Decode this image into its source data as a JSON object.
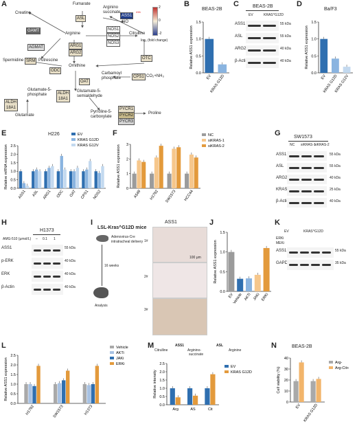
{
  "colors": {
    "ev_blue": "#2f6fb0",
    "kras_g12d": "#8ab4e0",
    "kras_g12v": "#c3d9ef",
    "nc_gray": "#9b9b9b",
    "si1": "#f6c78c",
    "si2": "#e39a3c",
    "vehicle": "#a9a9a9",
    "akti": "#a8c2e3",
    "jaki": "#2f6fb0",
    "erki": "#e39a3c",
    "arg_minus": "#a9a9a9",
    "arg_cit": "#f2b56b"
  },
  "panels": {
    "A": {
      "label": "A",
      "nodes": {
        "fumarate": "Fumarate",
        "argino": "Arginino",
        "succinate": "succinate",
        "creatine": "Creatine",
        "asl": "ASL",
        "ass1": "ASS1",
        "asterisks": "***",
        "gamt": "GAMT",
        "arginine": "Arginine",
        "nos1": "NOS1",
        "nos2": "NOS2",
        "nos3": "NOS3",
        "no": "NO",
        "citrulline": "Citrulline",
        "agmat": "AGMAT",
        "arg1": "ARG1",
        "arg2": "ARG2",
        "spermidine": "Spermidine",
        "srm": "SRM",
        "putrescine": "Putrescine",
        "odc": "ODC",
        "ornithine": "Ornithine",
        "otc": "OTC",
        "carbamoyl": "Carbamoyl",
        "phosphate": "phosphate",
        "cps1": "CPS1",
        "co2": "CO₂+NH₃",
        "oat": "OAT",
        "glutamate5p": "Glutamate-5-",
        "phosphate2": "phosphate",
        "aldh18a1": "ALDH",
        "aldh18a1b": "18A1",
        "glutamate5s": "Glutamate-5-",
        "semialdehyde": "semialdehyde",
        "glutamate": "Glutamate",
        "pyrroline": "Pyrroline-5-",
        "carboxylate": "carboxylate",
        "pycr1": "PYCR1",
        "pycr2": "PYCR2",
        "pycr3": "PYCR3",
        "proline": "Proline",
        "scale_top": "2",
        "scale_mid": "0",
        "scale_bot": "-2",
        "scale_title": "log₂ (fold change)"
      }
    },
    "B": {
      "label": "B",
      "title": "BEAS-2B",
      "ylabel": "Relative ASS1 expression",
      "categories": [
        "EV",
        "KRAS^G12D"
      ],
      "sig": "***"
    },
    "C": {
      "label": "C",
      "title": "BEAS-2B",
      "lanes": [
        "EV",
        "KRAS^G12D"
      ],
      "rows": [
        "ASS1",
        "ASL",
        "ARG2",
        "β-Actin"
      ],
      "kda": [
        "55 kDa",
        "55 kDa",
        "40 kDa",
        "40 kDa"
      ]
    },
    "D": {
      "label": "D",
      "title": "Ba/F3",
      "ylabel": "Relative ASS1 expression",
      "categories": [
        "EV",
        "KRAS^G12D",
        "KRAS^G12V"
      ],
      "sig1": "***",
      "sig2": "**"
    },
    "E": {
      "label": "E",
      "title": "H226",
      "ylabel": "Relative mRNA expression",
      "legend": [
        "EV",
        "KRAS^G12D",
        "KRAS^G12V"
      ],
      "categories": [
        "ASS1",
        "ASL",
        "ARG1",
        "ODC",
        "OAT",
        "CPS1",
        "NOS2"
      ]
    },
    "F": {
      "label": "F",
      "ylabel": "Relative ASS1 expression",
      "legend": [
        "NC",
        "siKRAS-1",
        "siKRAS-2"
      ],
      "categories": [
        "A549",
        "H1792",
        "SW1573",
        "HCC44"
      ]
    },
    "G": {
      "label": "G",
      "title": "SW1573",
      "lanes": [
        "NC",
        "siKRAS-1",
        "siKRAS-2"
      ],
      "rows": [
        "ASS1",
        "ASL",
        "ARG2",
        "KRAS",
        "β-Actin"
      ],
      "kda": [
        "55 kDa",
        "55 kDa",
        "40 kDa",
        "25 kDa",
        "40 kDa"
      ]
    },
    "H": {
      "label": "H",
      "title": "H1373",
      "treat": "AMG-510 (μmol/L)",
      "doses": [
        "–",
        "0.1",
        "1"
      ],
      "rows": [
        "ASS1",
        "p-ERK",
        "ERK",
        "β-Actin"
      ],
      "kda": [
        "55 kDa",
        "40 kDa",
        "40 kDa",
        "40 kDa"
      ]
    },
    "I": {
      "label": "I",
      "mouse": "LSL-Kras^G12D mice",
      "delivery1": "Adenovirus-Cre",
      "delivery2": "intratracheal delivery",
      "weeks": "16 weeks",
      "analysis": "Analysis",
      "stain": "ASS1",
      "samples": [
        "1#",
        "2#",
        "3#"
      ],
      "scalebar": "100 μm"
    },
    "J": {
      "label": "J",
      "ylabel": "Relative ASS1 expression",
      "categories": [
        "EV",
        "Vehicle",
        "AKTi",
        "JAKi",
        "ERKi"
      ],
      "group": "KRAS^G12D",
      "sig1": "***",
      "sig2": "ns",
      "sig3": "ns"
    },
    "K": {
      "label": "K",
      "ev": "EV",
      "group": "KRAS^G12D",
      "erki": "ERKi",
      "meki": "MEKi",
      "rows": [
        "ASS1",
        "GAPDH"
      ],
      "kda": [
        "55 kDa",
        "35 kDa"
      ]
    },
    "L": {
      "label": "L",
      "ylabel": "Relative ASS1 expression",
      "legend": [
        "Vehicle",
        "AKTi",
        "JAKi",
        "ERKi"
      ],
      "categories": [
        "H1792",
        "SW1573",
        "H1373"
      ]
    },
    "M": {
      "label": "M",
      "path_c": "Citrulline",
      "path_a": "Arginino-",
      "path_a2": "succinate",
      "path_r": "Arginine",
      "enz1": "ASS1",
      "enz2": "ASL",
      "ylabel": "Relative intensity",
      "legend": [
        "EV",
        "KRAS^G12D"
      ],
      "categories": [
        "Arg",
        "AS",
        "Cit"
      ],
      "sigs": [
        "**",
        "*",
        "*"
      ]
    },
    "N": {
      "label": "N",
      "title": "BEAS-2B",
      "ylabel": "Cell viability (%)",
      "legend": [
        "Arg-",
        "Arg-Cit+"
      ],
      "categories": [
        "EV",
        "KRAS^G12D"
      ],
      "sigs": [
        "***",
        "ns"
      ]
    }
  },
  "chart_data": [
    {
      "type": "bar",
      "panel": "B",
      "categories": [
        "EV",
        "KRAS G12D"
      ],
      "values": [
        1.0,
        0.25
      ],
      "ylim": [
        0,
        1.5
      ],
      "yticks": [
        "0.0",
        "0.5",
        "1.0",
        "1.5"
      ],
      "ylabel": "Relative ASS1 expression",
      "title": "BEAS-2B"
    },
    {
      "type": "bar",
      "panel": "D",
      "categories": [
        "EV",
        "KRAS G12D",
        "KRAS G12V"
      ],
      "values": [
        1.0,
        0.42,
        0.18
      ],
      "ylim": [
        0,
        1.5
      ],
      "yticks": [
        "0.0",
        "0.5",
        "1.0",
        "1.5"
      ],
      "ylabel": "Relative ASS1 expression",
      "title": "Ba/F3"
    },
    {
      "type": "bar",
      "panel": "E",
      "categories": [
        "ASS1",
        "ASL",
        "ARG1",
        "ODC",
        "OAT",
        "CPS1",
        "NOS2"
      ],
      "series": [
        {
          "name": "EV",
          "values": [
            1.0,
            1.0,
            1.0,
            1.0,
            1.0,
            1.0,
            1.0
          ]
        },
        {
          "name": "KRAS G12D",
          "values": [
            0.3,
            1.1,
            1.2,
            1.9,
            1.0,
            1.1,
            0.9
          ]
        },
        {
          "name": "KRAS G12V",
          "values": [
            0.15,
            1.0,
            1.3,
            1.1,
            1.2,
            1.6,
            1.3
          ]
        }
      ],
      "ylim": [
        0,
        2.5
      ],
      "yticks": [
        "0.0",
        "0.5",
        "1.0",
        "1.5",
        "2.0",
        "2.5"
      ],
      "ylabel": "Relative mRNA expression",
      "title": "H226"
    },
    {
      "type": "bar",
      "panel": "F",
      "categories": [
        "A549",
        "H1792",
        "SW1573",
        "HCC44"
      ],
      "series": [
        {
          "name": "NC",
          "values": [
            1.0,
            1.0,
            1.0,
            1.0
          ]
        },
        {
          "name": "siKRAS-1",
          "values": [
            1.9,
            2.1,
            2.7,
            2.3
          ]
        },
        {
          "name": "siKRAS-2",
          "values": [
            1.8,
            2.9,
            2.8,
            2.1
          ]
        }
      ],
      "ylim": [
        0,
        3
      ],
      "yticks": [
        "0",
        "1",
        "2",
        "3"
      ],
      "ylabel": "Relative ASS1 expression"
    },
    {
      "type": "bar",
      "panel": "J",
      "categories": [
        "EV",
        "Vehicle",
        "AKTi",
        "JAKi",
        "ERKi"
      ],
      "values": [
        1.0,
        0.32,
        0.33,
        0.42,
        1.1
      ],
      "ylim": [
        0,
        1.5
      ],
      "yticks": [
        "0.0",
        "0.5",
        "1.0",
        "1.5"
      ],
      "ylabel": "Relative ASS1 expression"
    },
    {
      "type": "bar",
      "panel": "L",
      "categories": [
        "H1792",
        "SW1573",
        "H1373"
      ],
      "series": [
        {
          "name": "Vehicle",
          "values": [
            1.0,
            1.0,
            1.0
          ]
        },
        {
          "name": "AKTi",
          "values": [
            1.0,
            1.05,
            0.95
          ]
        },
        {
          "name": "JAKi",
          "values": [
            0.9,
            1.2,
            1.0
          ]
        },
        {
          "name": "ERKi",
          "values": [
            1.95,
            1.7,
            1.95
          ]
        }
      ],
      "ylim": [
        0,
        2.5
      ],
      "yticks": [
        "0.0",
        "0.5",
        "1.0",
        "1.5",
        "2.0",
        "2.5"
      ],
      "ylabel": "Relative ASS1 expression"
    },
    {
      "type": "bar",
      "panel": "M",
      "categories": [
        "Arg",
        "AS",
        "Cit"
      ],
      "series": [
        {
          "name": "EV",
          "values": [
            1.0,
            1.0,
            1.0
          ]
        },
        {
          "name": "KRAS G12D",
          "values": [
            0.45,
            0.55,
            1.85
          ]
        }
      ],
      "ylim": [
        0,
        2.5
      ],
      "yticks": [
        "0.0",
        "0.5",
        "1.0",
        "1.5",
        "2.0",
        "2.5"
      ],
      "ylabel": "Relative intensity"
    },
    {
      "type": "bar",
      "panel": "N",
      "categories": [
        "EV",
        "KRAS G12D"
      ],
      "series": [
        {
          "name": "Arg-",
          "values": [
            19,
            19
          ]
        },
        {
          "name": "Arg-Cit+",
          "values": [
            36,
            21
          ]
        }
      ],
      "ylim": [
        0,
        40
      ],
      "yticks": [
        "0",
        "10",
        "20",
        "30",
        "40"
      ],
      "ylabel": "Cell viability (%)",
      "title": "BEAS-2B"
    }
  ]
}
